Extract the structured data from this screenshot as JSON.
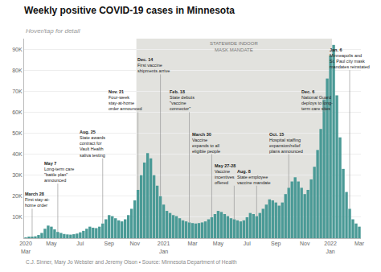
{
  "chart_data": {
    "type": "bar",
    "title": "Weekly positive COVID-19 cases in Minnesota",
    "subtitle": "Hover/tap for detail",
    "source": "C.J. Sinner, Mary Jo Webster and Jeremy Olson • Source: Minnesota Department of Health",
    "color": "#4a9a96",
    "categories": [
      "2020\nMar",
      null,
      null,
      null,
      null,
      null,
      null,
      null,
      "May",
      null,
      null,
      null,
      null,
      null,
      null,
      null,
      null,
      "Jul",
      null,
      null,
      null,
      null,
      null,
      null,
      null,
      null,
      "Sep",
      null,
      null,
      null,
      null,
      null,
      null,
      null,
      "Nov",
      null,
      null,
      null,
      null,
      null,
      null,
      null,
      null,
      "2021\nJan",
      null,
      null,
      null,
      null,
      null,
      null,
      null,
      null,
      "Mar",
      null,
      null,
      null,
      null,
      null,
      null,
      null,
      "May",
      null,
      null,
      null,
      null,
      null,
      null,
      null,
      null,
      "Jul",
      null,
      null,
      null,
      null,
      null,
      null,
      null,
      null,
      "Sep",
      null,
      null,
      null,
      null,
      null,
      null,
      null,
      null,
      "Nov",
      null,
      null,
      null,
      null,
      null,
      null,
      null,
      "2022\nJan",
      null,
      null,
      null,
      null,
      null,
      null,
      null,
      null,
      "Mar"
    ],
    "values": [
      300,
      400,
      600,
      900,
      1500,
      2500,
      4500,
      6000,
      5500,
      4200,
      3000,
      2500,
      2000,
      1800,
      1700,
      1900,
      2200,
      2800,
      3500,
      4500,
      5500,
      5000,
      4800,
      5500,
      7000,
      9000,
      11000,
      10500,
      9500,
      8500,
      8000,
      9000,
      11000,
      14000,
      18000,
      23000,
      30000,
      36000,
      40500,
      38000,
      30000,
      25000,
      20000,
      16000,
      13000,
      12000,
      11000,
      10500,
      9500,
      8500,
      8000,
      7500,
      7200,
      7000,
      7200,
      7500,
      8000,
      9000,
      10000,
      11500,
      13000,
      12500,
      11500,
      10500,
      9500,
      9000,
      8500,
      8000,
      8500,
      10000,
      12000,
      11500,
      10500,
      12000,
      14000,
      16000,
      18500,
      18000,
      17000,
      15500,
      17000,
      21000,
      24000,
      27000,
      29000,
      27000,
      24000,
      21000,
      23000,
      28000,
      34000,
      42000,
      52000,
      66000,
      76000,
      87000,
      92000,
      68000,
      48000,
      33000,
      22000,
      14000,
      9000,
      7000,
      5500
    ],
    "ylim": [
      0,
      95000
    ],
    "yticks": [
      {
        "value": 10000,
        "label": "10K"
      },
      {
        "value": 20000,
        "label": "20K"
      },
      {
        "value": 30000,
        "label": "30K"
      },
      {
        "value": 40000,
        "label": "40K"
      },
      {
        "value": 50000,
        "label": "50K"
      },
      {
        "value": 60000,
        "label": "60K"
      },
      {
        "value": 70000,
        "label": "70K"
      },
      {
        "value": 80000,
        "label": "80K"
      },
      {
        "value": 90000,
        "label": "90K"
      }
    ],
    "grid": true,
    "shading": {
      "label": "STATEWIDE INDOOR\nMASK MANDATE",
      "start": 35,
      "end": 95,
      "color": "#e2e2de"
    },
    "annotations": [
      {
        "label": "March 28",
        "text": "First stay-at-\nhome order",
        "bar": 2,
        "x": 0,
        "y": 14000
      },
      {
        "label": "May 7",
        "text": "Long-term care\n\"battle plan\"\nannounced",
        "bar": 10,
        "x": 6,
        "y": 26000
      },
      {
        "label": "Aug. 25",
        "text": "State awards\ncontract for\nVault Health\nsaliva testing",
        "bar": 24,
        "x": 17,
        "y": 38000
      },
      {
        "label": "Nov. 21",
        "text": "Four-week\nstay-at-home\norder announced",
        "bar": 35,
        "x": 26,
        "y": 60000
      },
      {
        "label": "Dec. 14",
        "text": "First vaccine\nshipments arrive",
        "bar": 42,
        "x": 35,
        "y": 78000
      },
      {
        "label": "Feb. 18",
        "text": "State debuts\n\"vaccine\nconnector\"",
        "bar": 51,
        "x": 45,
        "y": 60000
      },
      {
        "label": "March 30",
        "text": "Vaccine\nexpands to all\neligible people",
        "bar": 58,
        "x": 52,
        "y": 40000
      },
      {
        "label": "May 27-28",
        "text": "Vaccine\nincentives\noffered",
        "bar": 65,
        "x": 59,
        "y": 25000
      },
      {
        "label": "Aug. 8",
        "text": "State employee\nvaccine mandate",
        "bar": 72,
        "x": 66,
        "y": 25000
      },
      {
        "label": "Oct. 15",
        "text": "Hospital staffing\nexpansion/relief\nplans announced",
        "bar": 82,
        "x": 76,
        "y": 40000
      },
      {
        "label": "Dec. 6",
        "text": "National Guard\ndeploys to long-\nterm care sites",
        "bar": 93,
        "x": 86,
        "y": 60000
      },
      {
        "label": "Jan. 6",
        "text": "Minneapolis and\nSt. Paul city mask\nmandates reinstated",
        "bar": 101,
        "x": 95,
        "y": 80000
      }
    ]
  }
}
